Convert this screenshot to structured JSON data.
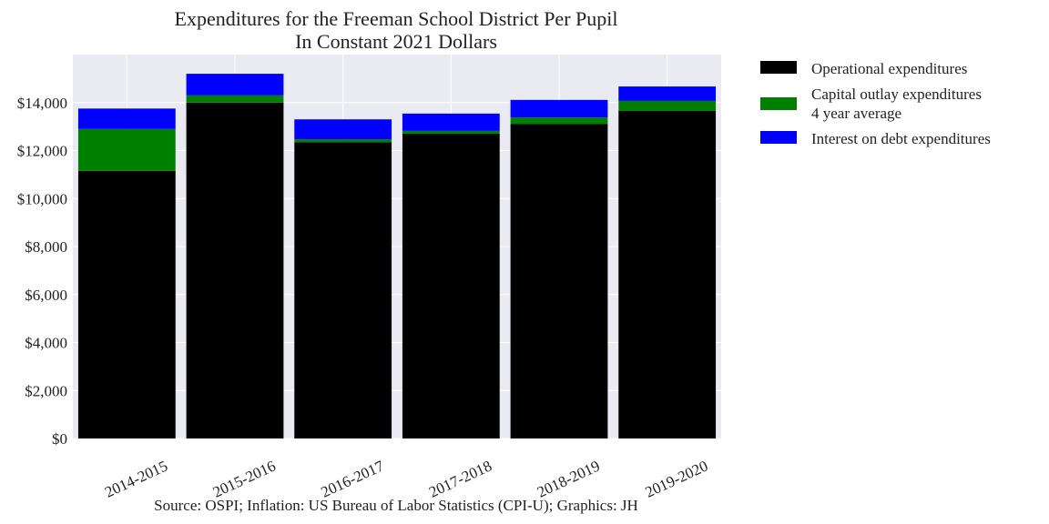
{
  "chart_data": {
    "type": "bar",
    "stacked": true,
    "title_lines": [
      "Expenditures for the Freeman School District Per Pupil",
      "In Constant 2021 Dollars"
    ],
    "xlabel": "",
    "ylabel": "",
    "categories": [
      "2014-2015",
      "2015-2016",
      "2016-2017",
      "2017-2018",
      "2018-2019",
      "2019-2020"
    ],
    "series": [
      {
        "name": "Operational expenditures",
        "color": "#000000",
        "values": [
          11150,
          14000,
          12350,
          12700,
          13100,
          13650
        ]
      },
      {
        "name_lines": [
          "Capital outlay expenditures",
          "4 year average"
        ],
        "color": "#008000",
        "values": [
          1750,
          300,
          120,
          120,
          280,
          420
        ]
      },
      {
        "name": "Interest on debt expenditures",
        "color": "#0000ff",
        "values": [
          850,
          900,
          830,
          720,
          730,
          600
        ]
      }
    ],
    "ylim": [
      0,
      16000
    ],
    "yticks": [
      0,
      2000,
      4000,
      6000,
      8000,
      10000,
      12000,
      14000
    ],
    "ytick_labels": [
      "$0",
      "$2,000",
      "$4,000",
      "$6,000",
      "$8,000",
      "$10,000",
      "$12,000",
      "$14,000"
    ],
    "grid": true,
    "legend_position": "outside-right-top",
    "plot_background": "#eaeaf2",
    "source": "Source: OSPI; Inflation: US Bureau of Labor Statistics (CPI-U); Graphics: JH"
  }
}
